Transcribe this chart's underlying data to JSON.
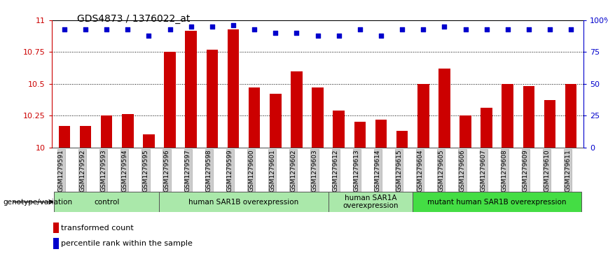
{
  "title": "GDS4873 / 1376022_at",
  "samples": [
    "GSM1279591",
    "GSM1279592",
    "GSM1279593",
    "GSM1279594",
    "GSM1279595",
    "GSM1279596",
    "GSM1279597",
    "GSM1279598",
    "GSM1279599",
    "GSM1279600",
    "GSM1279601",
    "GSM1279602",
    "GSM1279603",
    "GSM1279612",
    "GSM1279613",
    "GSM1279614",
    "GSM1279615",
    "GSM1279604",
    "GSM1279605",
    "GSM1279606",
    "GSM1279607",
    "GSM1279608",
    "GSM1279609",
    "GSM1279610",
    "GSM1279611"
  ],
  "bar_values": [
    10.17,
    10.17,
    10.25,
    10.26,
    10.1,
    10.75,
    10.92,
    10.77,
    10.93,
    10.47,
    10.42,
    10.6,
    10.47,
    10.29,
    10.2,
    10.22,
    10.13,
    10.5,
    10.62,
    10.25,
    10.31,
    10.5,
    10.48,
    10.37,
    10.5
  ],
  "blue_dot_values": [
    10.93,
    10.93,
    10.93,
    10.93,
    10.88,
    10.93,
    10.95,
    10.95,
    10.96,
    10.93,
    10.9,
    10.9,
    10.88,
    10.88,
    10.93,
    10.88,
    10.93,
    10.93,
    10.95,
    10.93,
    10.93,
    10.93,
    10.93,
    10.93,
    10.93
  ],
  "groups": [
    {
      "label": "control",
      "start": 0,
      "end": 4,
      "color": "#aae8aa"
    },
    {
      "label": "human SAR1B overexpression",
      "start": 5,
      "end": 12,
      "color": "#aae8aa"
    },
    {
      "label": "human SAR1A\noverexpression",
      "start": 13,
      "end": 16,
      "color": "#aae8aa"
    },
    {
      "label": "mutant human SAR1B overexpression",
      "start": 17,
      "end": 24,
      "color": "#44dd44"
    }
  ],
  "ylim": [
    10.0,
    11.0
  ],
  "yticks": [
    10.0,
    10.25,
    10.5,
    10.75,
    11.0
  ],
  "ytick_labels": [
    "10",
    "10.25",
    "10.5",
    "10.75",
    "11"
  ],
  "right_yticks": [
    0.0,
    0.25,
    0.5,
    0.75,
    1.0
  ],
  "right_ytick_labels": [
    "0",
    "25",
    "50",
    "75",
    "100%"
  ],
  "bar_color": "#CC0000",
  "dot_color": "#0000CC",
  "left_axis_color": "#CC0000",
  "right_axis_color": "#0000CC"
}
